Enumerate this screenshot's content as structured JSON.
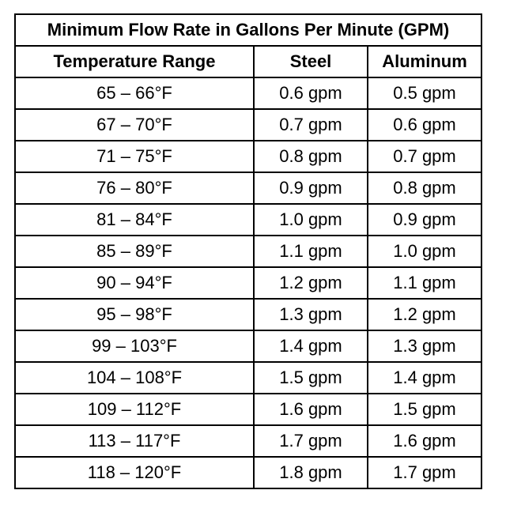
{
  "table": {
    "title": "Minimum Flow Rate in Gallons Per Minute (GPM)",
    "headers": [
      "Temperature Range",
      "Steel",
      "Aluminum"
    ],
    "rows": [
      [
        "65 – 66°F",
        "0.6 gpm",
        "0.5 gpm"
      ],
      [
        "67 – 70°F",
        "0.7 gpm",
        "0.6 gpm"
      ],
      [
        "71 – 75°F",
        "0.8 gpm",
        "0.7 gpm"
      ],
      [
        "76 – 80°F",
        "0.9 gpm",
        "0.8 gpm"
      ],
      [
        "81 – 84°F",
        "1.0 gpm",
        "0.9 gpm"
      ],
      [
        "85 – 89°F",
        "1.1 gpm",
        "1.0 gpm"
      ],
      [
        "90 – 94°F",
        "1.2 gpm",
        "1.1 gpm"
      ],
      [
        "95 – 98°F",
        "1.3 gpm",
        "1.2 gpm"
      ],
      [
        "99 – 103°F",
        "1.4 gpm",
        "1.3 gpm"
      ],
      [
        "104 – 108°F",
        "1.5 gpm",
        "1.4 gpm"
      ],
      [
        "109 – 112°F",
        "1.6 gpm",
        "1.5 gpm"
      ],
      [
        "113 – 117°F",
        "1.7 gpm",
        "1.6 gpm"
      ],
      [
        "118 – 120°F",
        "1.8 gpm",
        "1.7 gpm"
      ]
    ]
  }
}
